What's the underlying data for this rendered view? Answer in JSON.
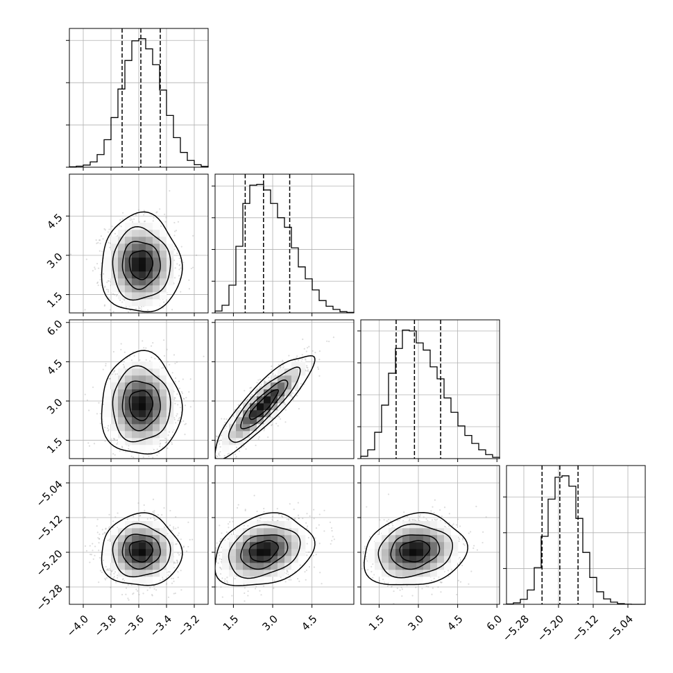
{
  "chart_data": {
    "type": "corner",
    "grid": true,
    "params": [
      {
        "range": [
          -4.1,
          -3.1
        ],
        "ticks": [
          -4.0,
          -3.8,
          -3.6,
          -3.4,
          -3.2
        ],
        "tick_labels": [
          "−4.0",
          "−3.8",
          "−3.6",
          "−3.4",
          "−3.2"
        ],
        "quantiles": [
          -3.72,
          -3.585,
          -3.445
        ],
        "hist_bins": [
          -4.1,
          -4.05,
          -4.0,
          -3.95,
          -3.9,
          -3.85,
          -3.8,
          -3.75,
          -3.7,
          -3.65,
          -3.6,
          -3.55,
          -3.5,
          -3.45,
          -3.4,
          -3.35,
          -3.3,
          -3.25,
          -3.2,
          -3.15,
          -3.1
        ],
        "hist_counts": [
          2,
          5,
          10,
          25,
          60,
          130,
          235,
          370,
          505,
          598,
          608,
          560,
          485,
          365,
          245,
          140,
          70,
          32,
          12,
          4
        ]
      },
      {
        "range": [
          0.8,
          6.1
        ],
        "ticks": [
          1.5,
          3.0,
          4.5
        ],
        "tick_labels": [
          "1.5",
          "3.0",
          "4.5"
        ],
        "quantiles": [
          1.95,
          2.65,
          3.65
        ],
        "hist_bins": [
          0.8,
          1.065,
          1.33,
          1.595,
          1.86,
          2.125,
          2.39,
          2.655,
          2.92,
          3.185,
          3.45,
          3.715,
          3.98,
          4.245,
          4.51,
          4.775,
          5.04,
          5.305,
          5.57,
          5.835,
          6.1
        ],
        "hist_counts": [
          12,
          48,
          175,
          420,
          690,
          805,
          810,
          775,
          690,
          600,
          540,
          410,
          290,
          215,
          145,
          78,
          42,
          22,
          8,
          3
        ]
      },
      {
        "range": [
          0.8,
          6.1
        ],
        "ticks": [
          1.5,
          3.0,
          4.5,
          6.0
        ],
        "tick_labels": [
          "1.5",
          "3.0",
          "4.5",
          "6.0"
        ],
        "quantiles": [
          2.15,
          2.85,
          3.85
        ],
        "hist_bins": [
          0.8,
          1.065,
          1.33,
          1.595,
          1.86,
          2.125,
          2.39,
          2.655,
          2.92,
          3.185,
          3.45,
          3.715,
          3.98,
          4.245,
          4.51,
          4.775,
          5.04,
          5.305,
          5.57,
          5.835,
          6.1
        ],
        "hist_counts": [
          15,
          55,
          165,
          335,
          535,
          690,
          805,
          800,
          725,
          680,
          575,
          500,
          380,
          290,
          205,
          145,
          95,
          55,
          25,
          8
        ]
      },
      {
        "range": [
          -5.32,
          -5.0
        ],
        "ticks": [
          -5.28,
          -5.2,
          -5.12,
          -5.04
        ],
        "tick_labels": [
          "−5.28",
          "−5.20",
          "−5.12",
          "−5.04"
        ],
        "quantiles": [
          -5.238,
          -5.197,
          -5.155
        ],
        "hist_bins": [
          -5.32,
          -5.304,
          -5.288,
          -5.272,
          -5.256,
          -5.24,
          -5.224,
          -5.208,
          -5.192,
          -5.176,
          -5.16,
          -5.144,
          -5.128,
          -5.112,
          -5.096,
          -5.08,
          -5.064,
          -5.048,
          -5.032,
          -5.016,
          -5.0
        ],
        "hist_counts": [
          2,
          8,
          28,
          80,
          205,
          380,
          588,
          710,
          718,
          660,
          480,
          290,
          150,
          70,
          30,
          12,
          4,
          1,
          0,
          0
        ]
      }
    ],
    "pairs": [
      {
        "row": 1,
        "col": 0,
        "rho": 0.0,
        "center": [
          -3.585,
          2.65
        ],
        "sigma": [
          0.125,
          0.82
        ],
        "contour_levels": [
          0.2,
          0.45,
          0.75,
          0.93
        ]
      },
      {
        "row": 2,
        "col": 0,
        "rho": 0.0,
        "center": [
          -3.585,
          2.85
        ],
        "sigma": [
          0.125,
          0.85
        ],
        "contour_levels": [
          0.2,
          0.45,
          0.75,
          0.93
        ]
      },
      {
        "row": 2,
        "col": 1,
        "rho": 0.88,
        "center": [
          2.65,
          2.85
        ],
        "sigma": [
          0.82,
          0.85
        ],
        "contour_levels": [
          0.2,
          0.45,
          0.75,
          0.93
        ]
      },
      {
        "row": 3,
        "col": 0,
        "rho": 0.0,
        "center": [
          -3.585,
          -5.197
        ],
        "sigma": [
          0.125,
          0.036
        ],
        "contour_levels": [
          0.2,
          0.45,
          0.75,
          0.93
        ]
      },
      {
        "row": 3,
        "col": 1,
        "rho": 0.25,
        "center": [
          2.65,
          -5.197
        ],
        "sigma": [
          0.82,
          0.036
        ],
        "contour_levels": [
          0.2,
          0.45,
          0.75,
          0.93
        ]
      },
      {
        "row": 3,
        "col": 2,
        "rho": 0.15,
        "center": [
          2.85,
          -5.197
        ],
        "sigma": [
          0.85,
          0.036
        ],
        "contour_levels": [
          0.2,
          0.45,
          0.75,
          0.93
        ]
      }
    ]
  }
}
